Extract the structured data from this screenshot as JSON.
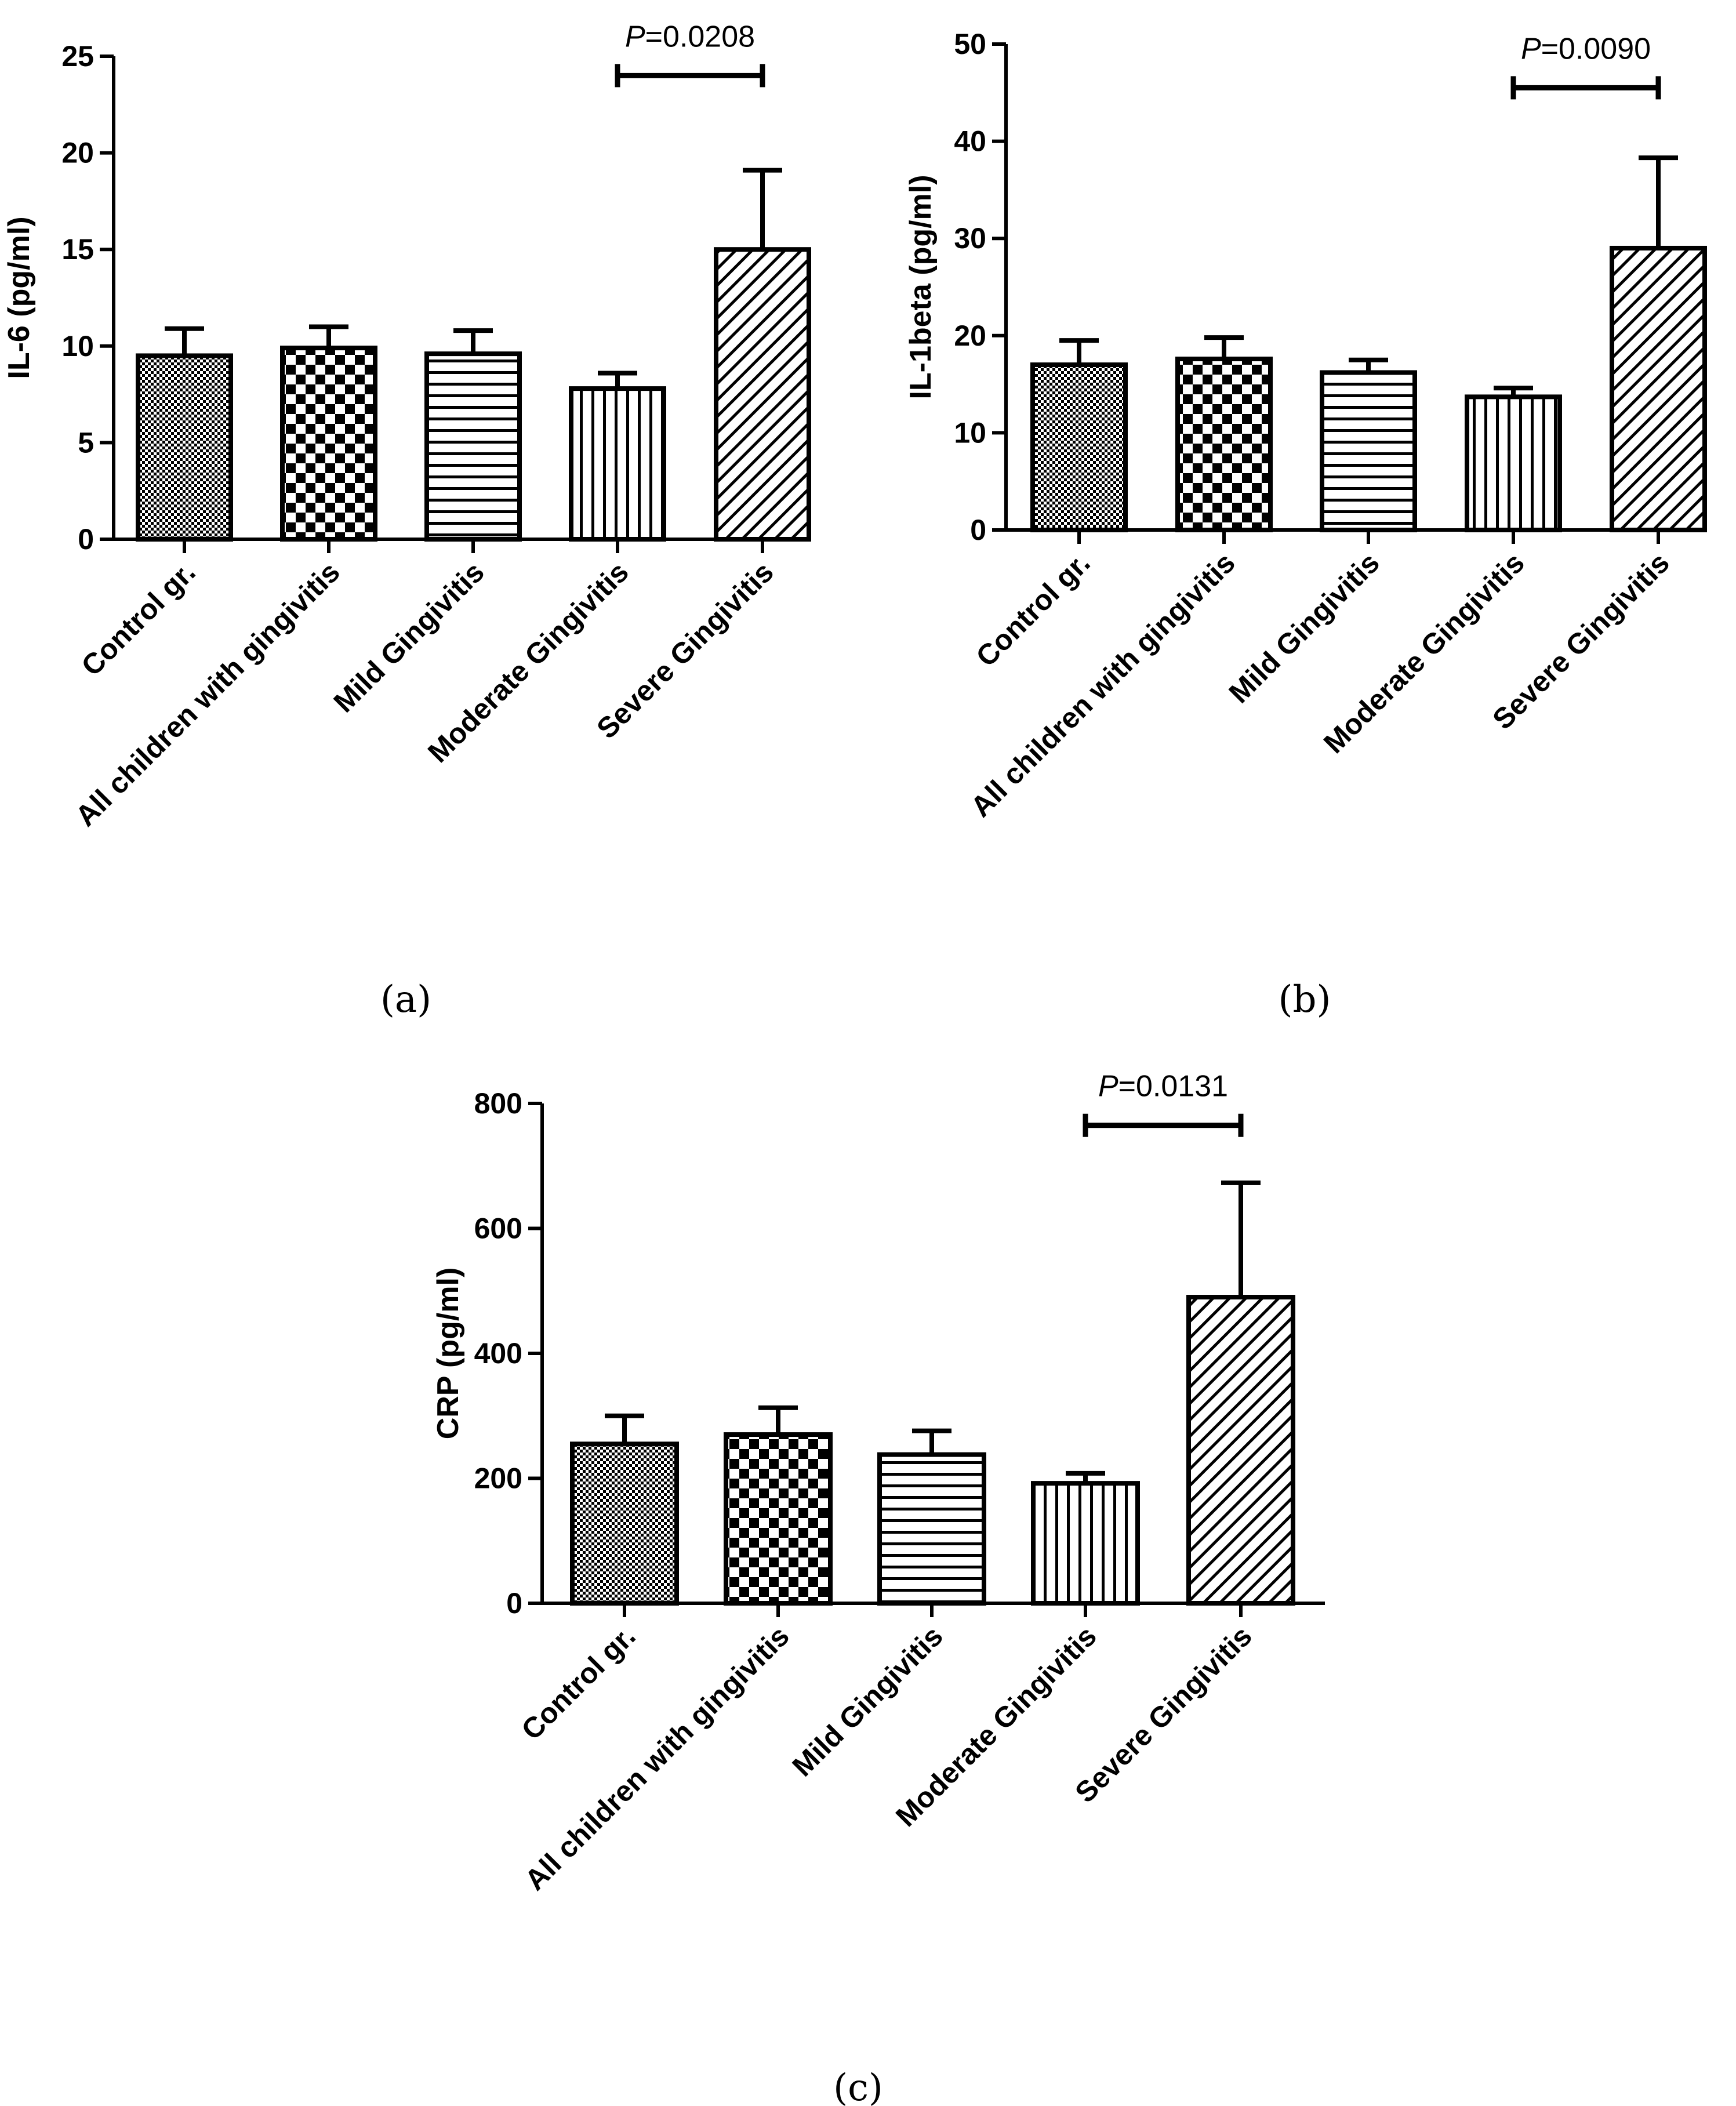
{
  "chart_data": [
    {
      "panel": "a",
      "panel_label": "(a)",
      "type": "bar",
      "ylabel": "IL-6 (pg/ml)",
      "ylim": [
        0,
        25
      ],
      "yticks": [
        0,
        5,
        10,
        15,
        20,
        25
      ],
      "categories": [
        "Control gr.",
        "All children with gingivitis",
        "Mild Gingivitis",
        "Moderate Gingivitis",
        "Severe Gingivitis"
      ],
      "values": [
        9.5,
        9.9,
        9.6,
        7.8,
        15.0
      ],
      "errors": [
        1.4,
        1.1,
        1.2,
        0.8,
        4.1
      ],
      "patterns": [
        "dots",
        "checker",
        "hlines",
        "vlines",
        "diag"
      ],
      "significance": {
        "from": 3,
        "to": 4,
        "p_prefix": "P",
        "p_value": "=0.0208",
        "y": 24.0
      }
    },
    {
      "panel": "b",
      "panel_label": "(b)",
      "type": "bar",
      "ylabel": "IL-1beta (pg/ml)",
      "ylim": [
        0,
        50
      ],
      "yticks": [
        0,
        10,
        20,
        30,
        40,
        50
      ],
      "categories": [
        "Control gr.",
        "All children with gingivitis",
        "Mild Gingivitis",
        "Moderate Gingivitis",
        "Severe Gingivitis"
      ],
      "values": [
        17.0,
        17.6,
        16.2,
        13.7,
        29.0
      ],
      "errors": [
        2.5,
        2.2,
        1.3,
        0.9,
        9.3
      ],
      "patterns": [
        "dots",
        "checker",
        "hlines",
        "vlines",
        "diag"
      ],
      "significance": {
        "from": 3,
        "to": 4,
        "p_prefix": "P",
        "p_value": "=0.0090",
        "y": 45.5
      }
    },
    {
      "panel": "c",
      "panel_label": "(c)",
      "type": "bar",
      "ylabel": "CRP (pg/ml)",
      "ylim": [
        0,
        800
      ],
      "yticks": [
        0,
        200,
        400,
        600,
        800
      ],
      "categories": [
        "Control gr.",
        "All children with gingivitis",
        "Mild Gingivitis",
        "Moderate Gingivitis",
        "Severe Gingivitis"
      ],
      "values": [
        255,
        270,
        238,
        192,
        490
      ],
      "errors": [
        45,
        43,
        38,
        16,
        183
      ],
      "patterns": [
        "dots",
        "checker",
        "hlines",
        "vlines",
        "diag"
      ],
      "significance": {
        "from": 3,
        "to": 4,
        "p_prefix": "P",
        "p_value": "=0.0131",
        "y": 765
      }
    }
  ]
}
